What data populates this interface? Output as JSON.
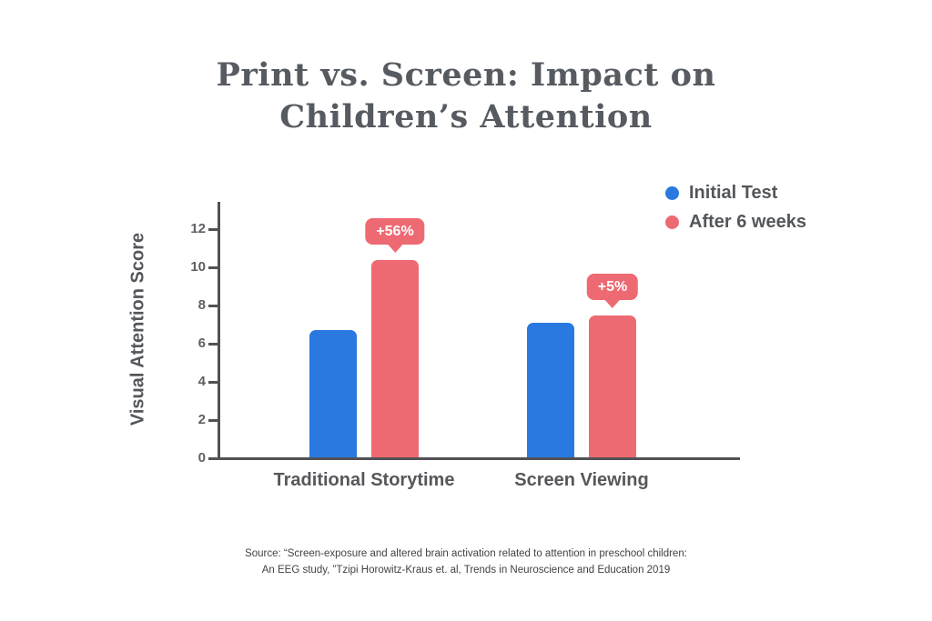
{
  "title": {
    "line1": "Print vs. Screen: Impact on",
    "line2": "Children’s Attention"
  },
  "source": {
    "line1": "Source: “Screen-exposure and altered brain activation related to attention in preschool children:",
    "line2": "An EEG study, ”Tzipi Horowitz-Kraus et. al,  Trends in Neuroscience and Education 2019"
  },
  "colors": {
    "initial_test": "#2979E0",
    "after_6_weeks": "#EE6A72",
    "axis": "#515256",
    "title_text": "#565B61",
    "label_text": "#53565A"
  },
  "chart_data": {
    "type": "bar",
    "title": "Print vs. Screen: Impact on Children's Attention",
    "categories": [
      "Traditional Storytime",
      "Screen Viewing"
    ],
    "series": [
      {
        "name": "Initial Test",
        "color": "#2979E0",
        "values": [
          6.7,
          7.1
        ]
      },
      {
        "name": "After 6 weeks",
        "color": "#EE6A72",
        "values": [
          10.4,
          7.5
        ],
        "annotations": [
          "+56%",
          "+5%"
        ]
      }
    ],
    "xlabel": "",
    "ylabel": "Visual Attention Score",
    "yticks": [
      0,
      2,
      4,
      6,
      8,
      10,
      12
    ],
    "ylim": [
      0,
      13.4
    ],
    "grid": false,
    "legend_position": "top-right"
  }
}
